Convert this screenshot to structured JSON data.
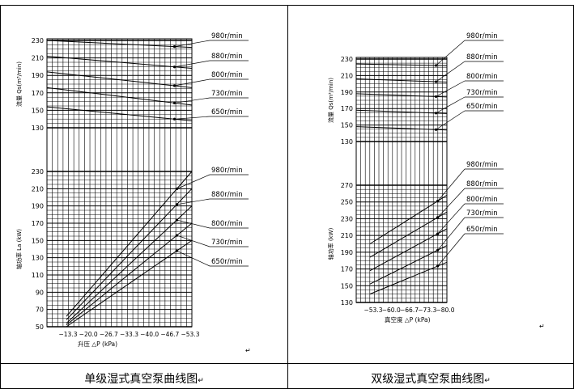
{
  "captions": {
    "left": "单级湿式真空泵曲线图",
    "right": "双级湿式真空泵曲线图"
  },
  "return_mark": "↵",
  "chart_data": [
    {
      "type": "line",
      "title": "",
      "panels": [
        {
          "name": "flow",
          "ylabel": "流量 Qs(m³/min)",
          "yticks": [
            230,
            210,
            190,
            170,
            150,
            130
          ],
          "ylim": [
            130,
            230
          ],
          "series": [
            {
              "name": "980r/min",
              "y_start": 230,
              "y_end": 222
            },
            {
              "name": "880r/min",
              "y_start": 212,
              "y_end": 198
            },
            {
              "name": "800r/min",
              "y_start": 194,
              "y_end": 176
            },
            {
              "name": "730r/min",
              "y_start": 176,
              "y_end": 156
            },
            {
              "name": "650r/min",
              "y_start": 154,
              "y_end": 138
            }
          ]
        },
        {
          "name": "power",
          "ylabel": "轴功率 La (kW)",
          "yticks": [
            230,
            210,
            190,
            170,
            150,
            130,
            110,
            90,
            70,
            50
          ],
          "ylim": [
            50,
            230
          ],
          "series": [
            {
              "name": "980r/min",
              "y_start": 62,
              "y_end": 230
            },
            {
              "name": "880r/min",
              "y_start": 58,
              "y_end": 210
            },
            {
              "name": "800r/min",
              "y_start": 54,
              "y_end": 190
            },
            {
              "name": "730r/min",
              "y_start": 52,
              "y_end": 170
            },
            {
              "name": "650r/min",
              "y_start": 50,
              "y_end": 150
            }
          ]
        }
      ],
      "xticks": [
        "−13.3",
        "−20.0",
        "−26.7",
        "−33.3",
        "−40.0",
        "−46.7",
        "−53.3"
      ],
      "xlabel": "升压  △P (kPa)"
    },
    {
      "type": "line",
      "title": "",
      "panels": [
        {
          "name": "flow",
          "ylabel": "流量 Qs(m³/min)",
          "yticks": [
            230,
            210,
            190,
            170,
            150,
            130
          ],
          "ylim": [
            130,
            230
          ],
          "series": [
            {
              "name": "980r/min",
              "y_start": 224,
              "y_end": 222
            },
            {
              "name": "880r/min",
              "y_start": 206,
              "y_end": 202
            },
            {
              "name": "800r/min",
              "y_start": 188,
              "y_end": 184
            },
            {
              "name": "730r/min",
              "y_start": 168,
              "y_end": 164
            },
            {
              "name": "650r/min",
              "y_start": 148,
              "y_end": 144
            }
          ]
        },
        {
          "name": "power",
          "ylabel": "轴功率 (kW)",
          "yticks": [
            270,
            250,
            230,
            210,
            190,
            170,
            150,
            130
          ],
          "ylim": [
            130,
            270
          ],
          "series": [
            {
              "name": "980r/min",
              "y_start": 200,
              "y_end": 258
            },
            {
              "name": "880r/min",
              "y_start": 184,
              "y_end": 238
            },
            {
              "name": "800r/min",
              "y_start": 168,
              "y_end": 218
            },
            {
              "name": "730r/min",
              "y_start": 152,
              "y_end": 198
            },
            {
              "name": "650r/min",
              "y_start": 140,
              "y_end": 178
            }
          ]
        }
      ],
      "xticks": [
        "−53.3",
        "−60.0",
        "−66.7",
        "−73.3",
        "−80.0"
      ],
      "xlabel": "真空度  △P (kPa)"
    }
  ]
}
